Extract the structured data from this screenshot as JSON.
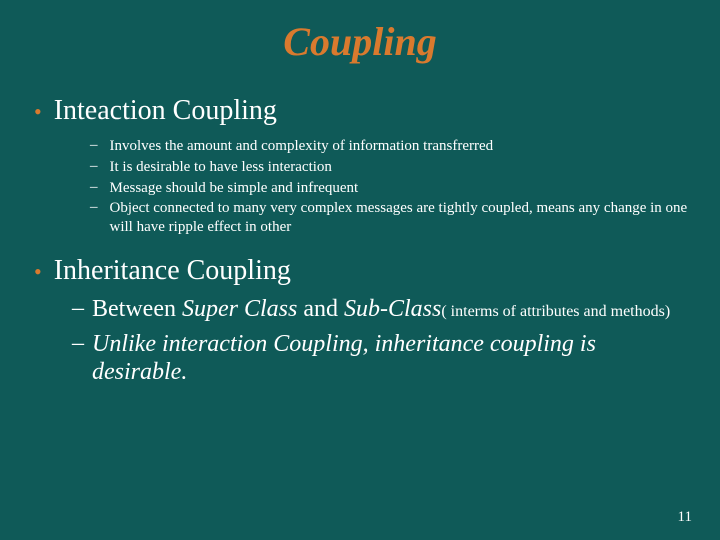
{
  "colors": {
    "background": "#0f5a58",
    "text": "#ffffff",
    "title": "#d97a2e",
    "bullet_dot": "#d97a2e"
  },
  "typography": {
    "title_fontsize": 40,
    "top_bullet_fontsize": 28,
    "sub_small_fontsize": 15,
    "sub_large_fontsize": 24,
    "page_num_fontsize": 15,
    "font_family": "Times New Roman"
  },
  "title": "Coupling",
  "sections": [
    {
      "heading": "Inteaction Coupling",
      "items_small": [
        "Involves the amount and complexity of information transfrerred",
        "It is desirable to have less interaction",
        "Message should be simple and infrequent",
        "Object connected to many very complex messages are tightly coupled, means any change in one will have ripple effect in other"
      ]
    },
    {
      "heading": "Inheritance Coupling",
      "items_large": [
        {
          "pre": "Between ",
          "i1": "Super Class",
          "mid": " and ",
          "i2": "Sub-Class",
          "tail_small": "( interms of attributes and methods)"
        },
        {
          "italic_full": "Unlike interaction Coupling, inheritance coupling is desirable."
        }
      ]
    }
  ],
  "page_number": "11"
}
